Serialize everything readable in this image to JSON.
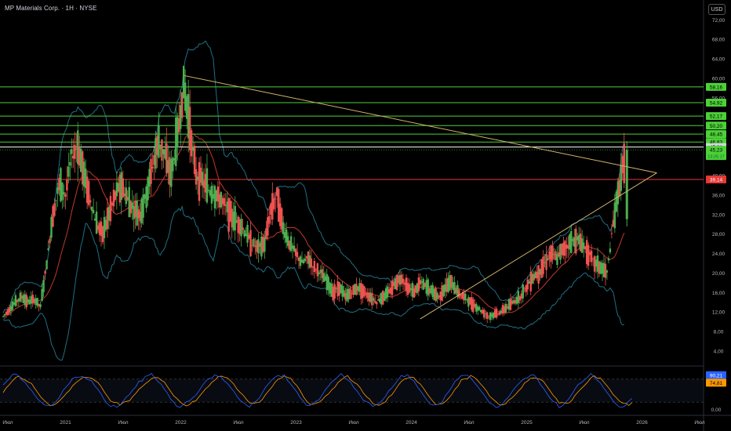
{
  "header": {
    "symbol_title": "MP Materials Corp. · 1H · NYSE",
    "currency_label": "USD"
  },
  "colors": {
    "background": "#000000",
    "candle_up": "#26a69a",
    "candle_up_bright": "#4caf50",
    "candle_down": "#ef5350",
    "bollinger": "#1f6f84",
    "moving_average": "#c0392b",
    "resistance_lines": "#4cd137",
    "support_line": "#e53935",
    "triangle": "#d4b36a",
    "stoch_k": "#2962ff",
    "stoch_d": "#ff9800"
  },
  "chart_data": [
    {
      "type": "candlestick",
      "title": "MP Materials Corp. · 1H · NYSE",
      "y_axis_ticks": [
        "72,00",
        "68,00",
        "64,00",
        "60,00",
        "56,00",
        "52,00",
        "48,00",
        "44,00",
        "40,00",
        "36,00",
        "32,00",
        "28,00",
        "24,00",
        "20,00",
        "16,00",
        "12,00",
        "8,00",
        "4,00"
      ],
      "x_axis_ticks": [
        "Июл",
        "2021",
        "Июл",
        "2022",
        "Июл",
        "2023",
        "Июл",
        "2024",
        "Июл",
        "2025",
        "Июл",
        "2026",
        "Июл"
      ],
      "ylim": [
        1,
        76
      ],
      "horizontal_levels": [
        {
          "value": 58.16,
          "label": "58,16",
          "color": "#4cd137"
        },
        {
          "value": 54.92,
          "label": "54,92",
          "color": "#4cd137"
        },
        {
          "value": 52.17,
          "label": "52,17",
          "color": "#4cd137"
        },
        {
          "value": 50.2,
          "label": "50,20",
          "color": "#4cd137"
        },
        {
          "value": 48.45,
          "label": "48,45",
          "color": "#4cd137"
        },
        {
          "value": 46.83,
          "label": "46,83",
          "color": "#4cd137"
        },
        {
          "value": 45.81,
          "label": "45,81",
          "color": "#ffffff"
        },
        {
          "value": 39.14,
          "label": "39,14",
          "color": "#e53935"
        }
      ],
      "last_price": {
        "value": 45.23,
        "label": "45,23",
        "sub_label": "13:25:17"
      },
      "series": [
        {
          "name": "",
          "key": "price",
          "x": [
            0,
            1,
            2,
            3,
            4,
            5,
            6,
            7,
            8,
            9,
            10,
            11,
            12,
            13,
            14,
            15,
            16,
            17,
            18,
            19,
            20,
            21,
            22,
            23,
            24,
            25,
            26,
            27,
            28,
            29,
            30,
            31,
            32,
            33,
            34,
            35,
            36,
            37,
            38,
            39,
            40,
            41,
            42,
            43,
            44,
            45,
            46,
            47,
            48,
            49,
            50,
            51,
            52,
            53,
            54,
            55,
            56,
            57,
            58,
            59,
            60
          ],
          "values": [
            11,
            12.5,
            14,
            15,
            14,
            14.5,
            13,
            22,
            32,
            38,
            36,
            44,
            46,
            40,
            35,
            30,
            28,
            32,
            36,
            38,
            35,
            33,
            32,
            36,
            42,
            47,
            44,
            40,
            48,
            58,
            50,
            40,
            39,
            37,
            36,
            35,
            33,
            31,
            30,
            28,
            26,
            25,
            26,
            33,
            36,
            29,
            26,
            24,
            22,
            23,
            21,
            20,
            18,
            16,
            17,
            15,
            16,
            17,
            16,
            15,
            14
          ]
        },
        {
          "name": "",
          "key": "price_2024_2025",
          "x": [
            60,
            61,
            62,
            63,
            64,
            65,
            66,
            67,
            68,
            69,
            70,
            71,
            72,
            73,
            74,
            75,
            76,
            77,
            78,
            79,
            80,
            81,
            82,
            83,
            84,
            85,
            86,
            87,
            88,
            89,
            90,
            91,
            92,
            93,
            94,
            95,
            96,
            97,
            98,
            99,
            100
          ],
          "values": [
            14,
            15,
            16,
            18,
            19,
            17,
            16,
            18,
            17,
            16,
            15,
            17,
            18,
            16,
            15,
            14,
            13,
            12,
            11,
            11.5,
            12,
            13,
            14,
            15,
            17,
            19,
            20,
            22,
            24,
            23,
            25,
            26,
            27,
            26,
            24,
            22,
            21,
            20,
            30,
            38,
            45
          ]
        }
      ],
      "annotations": [
        {
          "type": "trendline",
          "from": [
            29,
            60.5
          ],
          "to": [
            105,
            40.5
          ]
        },
        {
          "type": "trendline",
          "from": [
            67,
            10.5
          ],
          "to": [
            105,
            40.5
          ]
        }
      ]
    },
    {
      "type": "line",
      "title": "",
      "y_axis_ticks": [
        "90,21",
        "74,81",
        "0,00"
      ],
      "ylim": [
        0,
        100
      ],
      "levels": [
        80,
        20
      ],
      "series": [
        {
          "name": "",
          "key": "stoch_k",
          "last_label": "90,21"
        },
        {
          "name": "",
          "key": "stoch_d",
          "last_label": "74,81"
        }
      ]
    }
  ]
}
